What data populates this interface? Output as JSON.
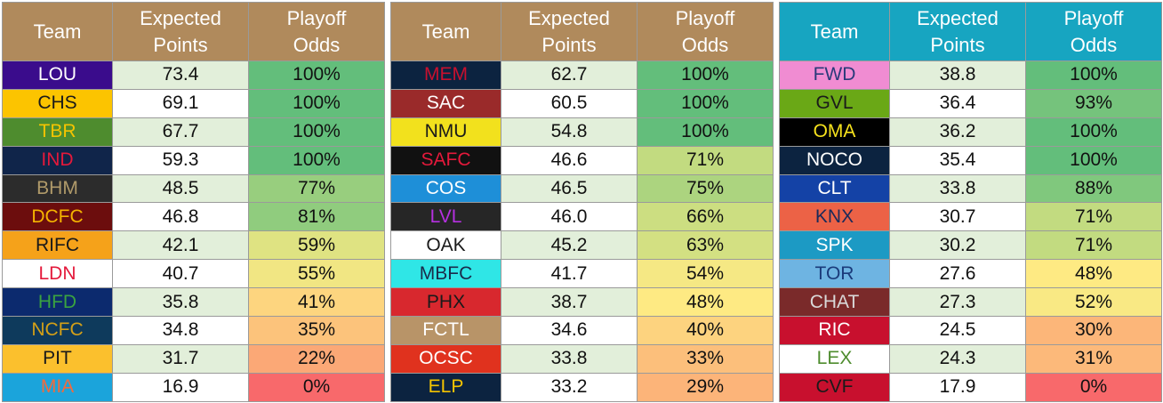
{
  "tables": [
    {
      "header_color": "#b08a5c",
      "headers": [
        "Team",
        "Expected\nPoints",
        "Playoff\nOdds"
      ],
      "rows": [
        {
          "team": "LOU",
          "bg": "#3a0c8c",
          "fg": "#ffffff",
          "points": "73.4",
          "odds": "100%",
          "odds_bg": "#63be7b"
        },
        {
          "team": "CHS",
          "bg": "#fcc400",
          "fg": "#1a1a1a",
          "points": "69.1",
          "odds": "100%",
          "odds_bg": "#63be7b"
        },
        {
          "team": "TBR",
          "bg": "#4e8c2e",
          "fg": "#f5c400",
          "points": "67.7",
          "odds": "100%",
          "odds_bg": "#63be7b"
        },
        {
          "team": "IND",
          "bg": "#10254a",
          "fg": "#e4193b",
          "points": "59.3",
          "odds": "100%",
          "odds_bg": "#63be7b"
        },
        {
          "team": "BHM",
          "bg": "#2c2c2c",
          "fg": "#b09a6a",
          "points": "48.5",
          "odds": "77%",
          "odds_bg": "#98ce7e"
        },
        {
          "team": "DCFC",
          "bg": "#6c0d0d",
          "fg": "#f5b400",
          "points": "46.8",
          "odds": "81%",
          "odds_bg": "#90cc7e"
        },
        {
          "team": "RIFC",
          "bg": "#f5a21a",
          "fg": "#1a1a1a",
          "points": "42.1",
          "odds": "59%",
          "odds_bg": "#dfe382"
        },
        {
          "team": "LDN",
          "bg": "#ffffff",
          "fg": "#e4193b",
          "points": "40.7",
          "odds": "55%",
          "odds_bg": "#f1e683"
        },
        {
          "team": "HFD",
          "bg": "#0c2a6e",
          "fg": "#3aa340",
          "points": "35.8",
          "odds": "41%",
          "odds_bg": "#fdd57f"
        },
        {
          "team": "NCFC",
          "bg": "#0e3a5c",
          "fg": "#d4a017",
          "points": "34.8",
          "odds": "35%",
          "odds_bg": "#fcc37b"
        },
        {
          "team": "PIT",
          "bg": "#fbc02d",
          "fg": "#1a1a1a",
          "points": "31.7",
          "odds": "22%",
          "odds_bg": "#fba876"
        },
        {
          "team": "MIA",
          "bg": "#1ba4db",
          "fg": "#f26a3c",
          "points": "16.9",
          "odds": "0%",
          "odds_bg": "#f8696b"
        }
      ]
    },
    {
      "header_color": "#b08a5c",
      "headers": [
        "Team",
        "Expected\nPoints",
        "Playoff\nOdds"
      ],
      "rows": [
        {
          "team": "MEM",
          "bg": "#0c2340",
          "fg": "#c8102e",
          "points": "62.7",
          "odds": "100%",
          "odds_bg": "#63be7b"
        },
        {
          "team": "SAC",
          "bg": "#9a2a2a",
          "fg": "#ffffff",
          "points": "60.5",
          "odds": "100%",
          "odds_bg": "#63be7b"
        },
        {
          "team": "NMU",
          "bg": "#f2e11d",
          "fg": "#1a1a1a",
          "points": "54.8",
          "odds": "100%",
          "odds_bg": "#63be7b"
        },
        {
          "team": "SAFC",
          "bg": "#111111",
          "fg": "#e4193b",
          "points": "46.6",
          "odds": "71%",
          "odds_bg": "#c2db80"
        },
        {
          "team": "COS",
          "bg": "#1e8fd8",
          "fg": "#ffffff",
          "points": "46.5",
          "odds": "75%",
          "odds_bg": "#acd47f"
        },
        {
          "team": "LVL",
          "bg": "#262626",
          "fg": "#b530e0",
          "points": "46.0",
          "odds": "66%",
          "odds_bg": "#ccde81"
        },
        {
          "team": "OAK",
          "bg": "#ffffff",
          "fg": "#1a1a1a",
          "points": "45.2",
          "odds": "63%",
          "odds_bg": "#d3e082"
        },
        {
          "team": "MBFC",
          "bg": "#2fe6e6",
          "fg": "#1a2a4a",
          "points": "41.7",
          "odds": "54%",
          "odds_bg": "#f5e884"
        },
        {
          "team": "PHX",
          "bg": "#d8282e",
          "fg": "#1a1a1a",
          "points": "38.7",
          "odds": "48%",
          "odds_bg": "#feea83"
        },
        {
          "team": "FCTL",
          "bg": "#b89468",
          "fg": "#ffffff",
          "points": "34.6",
          "odds": "40%",
          "odds_bg": "#fdd37f"
        },
        {
          "team": "OCSC",
          "bg": "#e0321e",
          "fg": "#ffffff",
          "points": "33.8",
          "odds": "33%",
          "odds_bg": "#fcbf7b"
        },
        {
          "team": "ELP",
          "bg": "#0c2340",
          "fg": "#f5c400",
          "points": "33.2",
          "odds": "29%",
          "odds_bg": "#fcb479"
        }
      ]
    },
    {
      "header_color": "#17a5c1",
      "headers": [
        "Team",
        "Expected\nPoints",
        "Playoff\nOdds"
      ],
      "rows": [
        {
          "team": "FWD",
          "bg": "#f08cd2",
          "fg": "#2a3a7a",
          "points": "38.8",
          "odds": "100%",
          "odds_bg": "#63be7b"
        },
        {
          "team": "GVL",
          "bg": "#6aa816",
          "fg": "#1a1a1a",
          "points": "36.4",
          "odds": "93%",
          "odds_bg": "#75c37c"
        },
        {
          "team": "OMA",
          "bg": "#000000",
          "fg": "#f5e11d",
          "points": "36.2",
          "odds": "100%",
          "odds_bg": "#63be7b"
        },
        {
          "team": "NOCO",
          "bg": "#0c2340",
          "fg": "#ffffff",
          "points": "35.4",
          "odds": "100%",
          "odds_bg": "#63be7b"
        },
        {
          "team": "CLT",
          "bg": "#1442a6",
          "fg": "#ffffff",
          "points": "33.8",
          "odds": "88%",
          "odds_bg": "#80c87d"
        },
        {
          "team": "KNX",
          "bg": "#ec6246",
          "fg": "#1a2a5a",
          "points": "30.7",
          "odds": "71%",
          "odds_bg": "#c2db80"
        },
        {
          "team": "SPK",
          "bg": "#1c9ac4",
          "fg": "#ffffff",
          "points": "30.2",
          "odds": "71%",
          "odds_bg": "#c2db80"
        },
        {
          "team": "TOR",
          "bg": "#6eb4e2",
          "fg": "#1a3a7a",
          "points": "27.6",
          "odds": "48%",
          "odds_bg": "#feea83"
        },
        {
          "team": "CHAT",
          "bg": "#7a2a2a",
          "fg": "#d9d9d9",
          "points": "27.3",
          "odds": "52%",
          "odds_bg": "#f9e984"
        },
        {
          "team": "RIC",
          "bg": "#c8102e",
          "fg": "#ffffff",
          "points": "24.5",
          "odds": "30%",
          "odds_bg": "#fcb679"
        },
        {
          "team": "LEX",
          "bg": "#ffffff",
          "fg": "#4e8c2e",
          "points": "24.3",
          "odds": "31%",
          "odds_bg": "#fcb97a"
        },
        {
          "team": "CVF",
          "bg": "#c8102e",
          "fg": "#1a1a1a",
          "points": "17.9",
          "odds": "0%",
          "odds_bg": "#f8696b"
        }
      ]
    }
  ]
}
